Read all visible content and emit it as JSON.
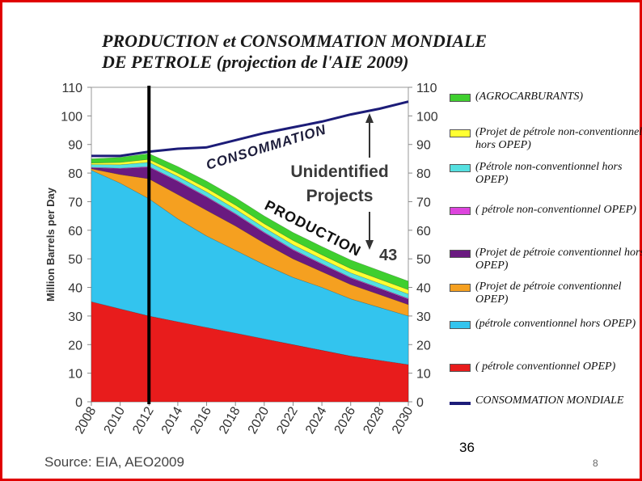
{
  "title": "PRODUCTION et CONSOMMATION MONDIALE\nDE PETROLE (projection de l'AIE 2009)",
  "source": "Source: EIA, AEO2009",
  "slide_number": "36",
  "page_number": "8",
  "colors": {
    "agro": "#3fcf2f",
    "nc_non_opec": "#ffff33",
    "nc_non_opec_2": "#55e0e0",
    "nc_opec": "#dd44dd",
    "proj_conv_non_opec": "#6a1a80",
    "proj_conv_opec": "#f5a020",
    "conv_non_opec": "#33c4ee",
    "conv_opec": "#e81c1c",
    "consumption": "#1c1c78",
    "frame": "#e00000"
  },
  "chart_data": {
    "type": "area",
    "title": "PRODUCTION et CONSOMMATION MONDIALE DE PETROLE (projection de l'AIE 2009)",
    "ylabel": "Million Barrels per Day",
    "xlabel": "",
    "ylim": [
      0,
      110
    ],
    "xlim": [
      2008,
      2030
    ],
    "y_ticks": [
      "0",
      "10",
      "20",
      "30",
      "40",
      "50",
      "60",
      "70",
      "80",
      "90",
      "100",
      "110"
    ],
    "x_ticks": [
      "2008",
      "2010",
      "2012",
      "2014",
      "2016",
      "2018",
      "2020",
      "2022",
      "2024",
      "2026",
      "2028",
      "2030"
    ],
    "x": [
      2008,
      2010,
      2012,
      2014,
      2016,
      2018,
      2020,
      2022,
      2024,
      2026,
      2028,
      2030
    ],
    "stack_order_bottom_to_top": [
      "conv_opec",
      "conv_non_opec",
      "proj_conv_opec",
      "proj_conv_non_opec",
      "nc_opec",
      "nc_non_opec_2",
      "nc_non_opec",
      "agro"
    ],
    "series": [
      {
        "key": "conv_opec",
        "name": "( pétrole conventionnel  OPEP)",
        "values": [
          35,
          32.5,
          30,
          28,
          26,
          24,
          22,
          20,
          18,
          16,
          14.5,
          13
        ]
      },
      {
        "key": "conv_non_opec",
        "name": "(pétrole conventionnel hors OPEP)",
        "values": [
          46,
          44,
          41,
          36,
          32,
          29,
          26,
          23.5,
          22,
          20,
          18.5,
          17
        ]
      },
      {
        "key": "proj_conv_opec",
        "name": "(Projet de pétroie conventionnel OPEP)",
        "values": [
          0.5,
          3,
          7,
          8.5,
          9,
          8.5,
          7.5,
          6.5,
          5.5,
          5,
          4.5,
          4
        ]
      },
      {
        "key": "proj_conv_non_opec",
        "name": "(Projet de pétroie conventionnel hors OPEP)",
        "values": [
          0.3,
          2,
          4,
          4.5,
          4.5,
          4,
          3.5,
          3,
          2.5,
          2.2,
          2,
          1.8
        ]
      },
      {
        "key": "nc_opec",
        "name": "( pétrole non-conventionnel OPEP)",
        "values": [
          0.2,
          0.2,
          0.3,
          0.3,
          0.3,
          0.3,
          0.3,
          0.3,
          0.3,
          0.3,
          0.3,
          0.3
        ]
      },
      {
        "key": "nc_non_opec_2",
        "name": "(Pétrole non-conventionnel hors OPEP)",
        "values": [
          1,
          1.2,
          1.5,
          1.5,
          1.6,
          1.6,
          1.6,
          1.6,
          1.6,
          1.6,
          1.6,
          1.6
        ]
      },
      {
        "key": "nc_non_opec",
        "name": "(Projet de pétrole non-conventionnel hors OPEP)",
        "values": [
          0.5,
          0.8,
          1,
          1.2,
          1.3,
          1.4,
          1.4,
          1.5,
          1.5,
          1.5,
          1.5,
          1.5
        ]
      },
      {
        "key": "agro",
        "name": "(AGROCARBURANTS)",
        "values": [
          1.5,
          1.8,
          2,
          2.3,
          2.5,
          2.6,
          2.7,
          2.8,
          2.9,
          3,
          3,
          3
        ]
      },
      {
        "key": "consumption",
        "name": "CONSOMMATION MONDIALE",
        "type": "line",
        "values": [
          86,
          86,
          87.5,
          88.5,
          89,
          91.5,
          94,
          96,
          98,
          100.5,
          102.5,
          105
        ]
      }
    ],
    "annotations": {
      "consommation": "CONSOMMATION",
      "production": "PRODUCTION",
      "unidentified": "Unidentified\nProjects",
      "gap_value": "43"
    },
    "marker_year": 2012
  },
  "legend": [
    {
      "key": "agro",
      "label": "(AGROCARBURANTS)"
    },
    {
      "key": "nc_non_opec",
      "label": "(Projet de pétrole non-conventionnel hors OPEP)"
    },
    {
      "key": "nc_non_opec_2",
      "label": "(Pétrole non-conventionnel hors OPEP)"
    },
    {
      "key": "nc_opec",
      "label": "( pétrole non-conventionnel OPEP)"
    },
    {
      "key": "proj_conv_non_opec",
      "label": "(Projet de pétroie conventionnel hors OPEP)"
    },
    {
      "key": "proj_conv_opec",
      "label": "(Projet de pétroie conventionnel OPEP)"
    },
    {
      "key": "conv_non_opec",
      "label": "(pétrole conventionnel hors OPEP)"
    },
    {
      "key": "conv_opec",
      "label": "( pétrole conventionnel  OPEP)"
    },
    {
      "key": "consumption",
      "label": "CONSOMMATION MONDIALE"
    }
  ]
}
